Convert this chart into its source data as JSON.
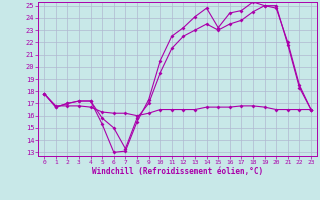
{
  "xlabel": "Windchill (Refroidissement éolien,°C)",
  "xlim": [
    -0.5,
    23.5
  ],
  "ylim": [
    12.7,
    25.3
  ],
  "yticks": [
    13,
    14,
    15,
    16,
    17,
    18,
    19,
    20,
    21,
    22,
    23,
    24,
    25
  ],
  "xticks": [
    0,
    1,
    2,
    3,
    4,
    5,
    6,
    7,
    8,
    9,
    10,
    11,
    12,
    13,
    14,
    15,
    16,
    17,
    18,
    19,
    20,
    21,
    22,
    23
  ],
  "bg_color": "#c8e8e8",
  "grid_color": "#b0b8d0",
  "line_color": "#aa00aa",
  "line1_x": [
    0,
    1,
    2,
    3,
    4,
    5,
    6,
    7,
    8,
    9,
    10,
    11,
    12,
    13,
    14,
    15,
    16,
    17,
    18,
    19,
    20,
    21,
    22,
    23
  ],
  "line1_y": [
    17.8,
    16.7,
    17.0,
    17.2,
    17.2,
    15.3,
    13.0,
    13.1,
    15.5,
    17.3,
    20.5,
    22.5,
    23.2,
    24.1,
    24.8,
    23.2,
    24.4,
    24.6,
    25.3,
    25.0,
    24.8,
    22.0,
    18.5,
    16.5
  ],
  "line2_x": [
    0,
    1,
    2,
    3,
    4,
    5,
    6,
    7,
    8,
    9,
    10,
    11,
    12,
    13,
    14,
    15,
    16,
    17,
    18,
    19,
    20,
    21,
    22,
    23
  ],
  "line2_y": [
    17.8,
    16.7,
    17.0,
    17.2,
    17.2,
    15.8,
    15.0,
    13.3,
    15.8,
    17.0,
    19.5,
    21.5,
    22.5,
    23.0,
    23.5,
    23.0,
    23.5,
    23.8,
    24.5,
    25.0,
    25.0,
    21.8,
    18.3,
    16.5
  ],
  "line3_x": [
    0,
    1,
    2,
    3,
    4,
    5,
    6,
    7,
    8,
    9,
    10,
    11,
    12,
    13,
    14,
    15,
    16,
    17,
    18,
    19,
    20,
    21,
    22,
    23
  ],
  "line3_y": [
    17.8,
    16.8,
    16.8,
    16.8,
    16.7,
    16.3,
    16.2,
    16.2,
    16.0,
    16.2,
    16.5,
    16.5,
    16.5,
    16.5,
    16.7,
    16.7,
    16.7,
    16.8,
    16.8,
    16.7,
    16.5,
    16.5,
    16.5,
    16.5
  ]
}
